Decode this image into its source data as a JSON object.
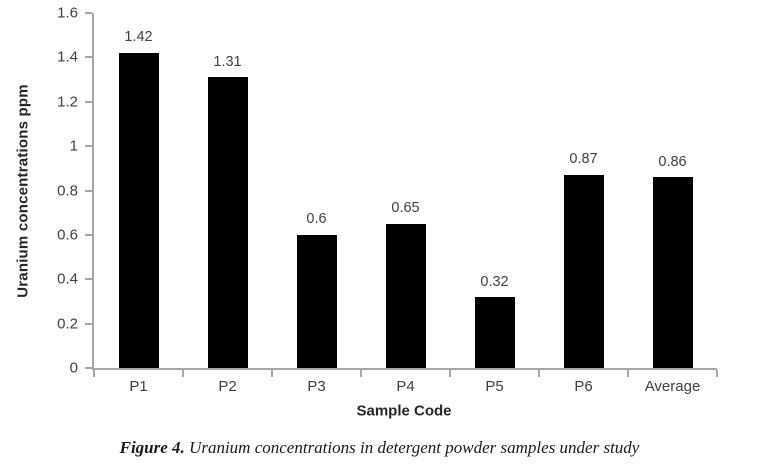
{
  "chart_data": {
    "type": "bar",
    "categories": [
      "P1",
      "P2",
      "P3",
      "P4",
      "P5",
      "P6",
      "Average"
    ],
    "values": [
      1.42,
      1.31,
      0.6,
      0.65,
      0.32,
      0.87,
      0.86
    ],
    "data_labels": [
      "1.42",
      "1.31",
      "0.6",
      "0.65",
      "0.32",
      "0.87",
      "0.86"
    ],
    "title": "",
    "xlabel": "Sample Code",
    "ylabel": "Uranium concentrations ppm",
    "ylim": [
      0,
      1.6
    ],
    "ytick_step": 0.2,
    "ytick_labels": [
      "0",
      "0.2",
      "0.4",
      "0.6",
      "0.8",
      "1",
      "1.2",
      "1.4",
      "1.6"
    ],
    "grid": false,
    "legend": "none",
    "bar_color": "#000000",
    "axis_color": "#a6a6a6",
    "tick_label_color": "#404040"
  },
  "caption": {
    "prefix": "Figure 4.",
    "text": " Uranium concentrations in detergent powder samples under study"
  }
}
